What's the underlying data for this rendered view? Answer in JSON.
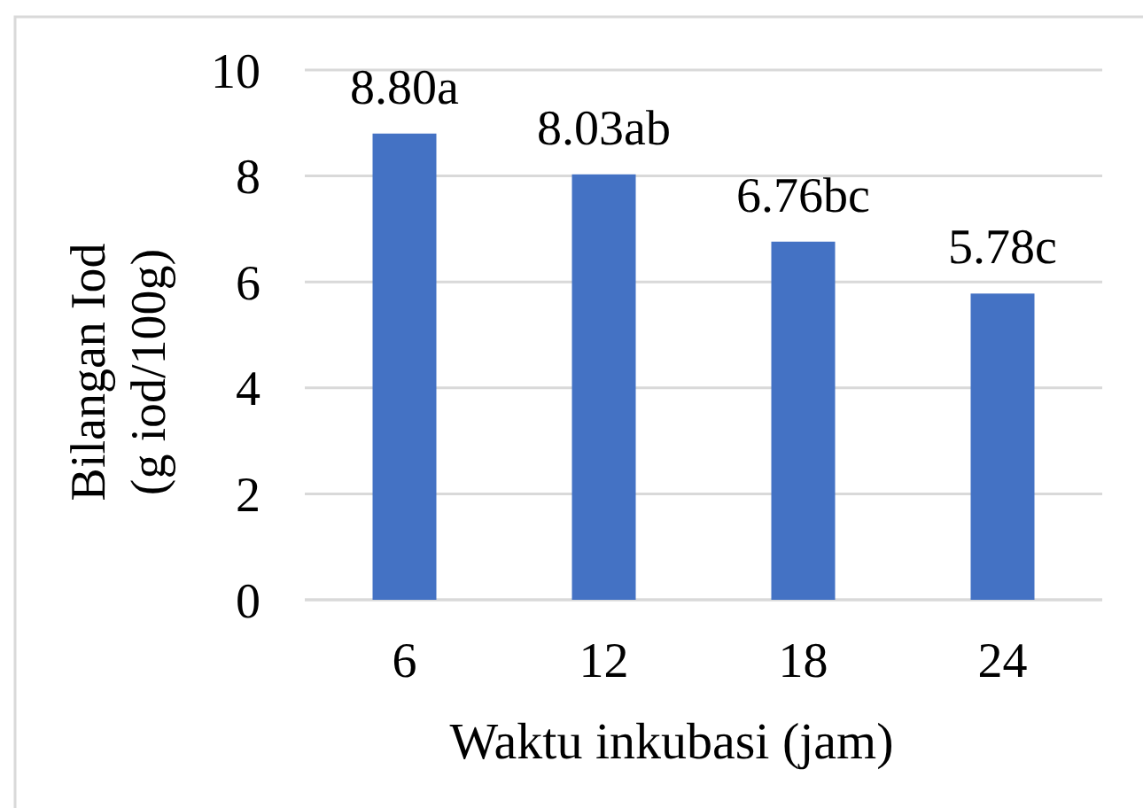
{
  "chart_data": {
    "type": "bar",
    "xlabel": "Waktu inkubasi (jam)",
    "ylabel": "Bilangan Iod\n(g iod/100g)",
    "categories": [
      "6",
      "12",
      "18",
      "24"
    ],
    "values": [
      8.8,
      8.03,
      6.76,
      5.78
    ],
    "value_labels": [
      "8.80a",
      "8.03ab",
      "6.76bc",
      "5.78c"
    ],
    "color": "#4472c4",
    "ylim": [
      0,
      10
    ],
    "yticks": [
      0,
      2,
      4,
      6,
      8,
      10
    ],
    "grid": "y"
  }
}
